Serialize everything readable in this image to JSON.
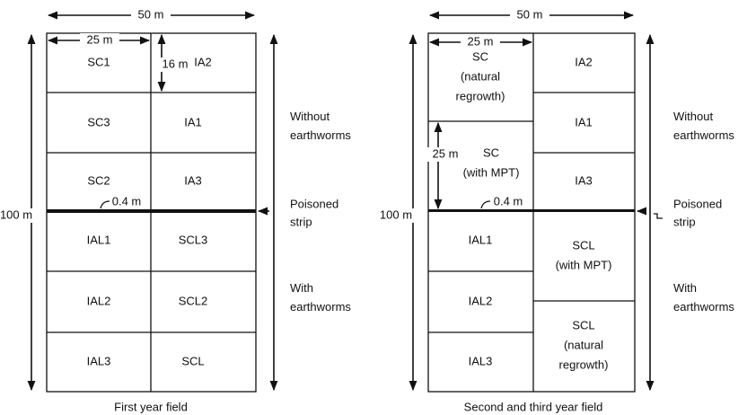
{
  "fields": [
    {
      "caption": "First year field",
      "width_label": "50 m",
      "height_label": "100 m",
      "plot_width_label": "25 m",
      "plot_height_label": "16 m",
      "strip_width_label": "0.4 m",
      "plots": [
        [
          "SC1"
        ],
        [
          "IA2"
        ],
        [
          "SC3"
        ],
        [
          "IA1"
        ],
        [
          "SC2"
        ],
        [
          "IA3"
        ],
        [
          "IAL1"
        ],
        [
          "SCL3"
        ],
        [
          "IAL2"
        ],
        [
          "SCL2"
        ],
        [
          "IAL3"
        ],
        [
          "SCL"
        ]
      ],
      "zones": {
        "without": [
          "Without",
          "earthworms"
        ],
        "strip": [
          "Poisoned",
          "strip"
        ],
        "with": [
          "With",
          "earthworms"
        ]
      }
    },
    {
      "caption": "Second and third year field",
      "width_label": "50 m",
      "height_label": "100 m",
      "plot_width_label": "25 m",
      "plot_height_label": "25 m",
      "strip_width_label": "0.4 m",
      "plots": [
        [
          "SC",
          "(natural",
          "regrowth)"
        ],
        [
          "IA2"
        ],
        [
          "SC",
          "(with MPT)"
        ],
        [
          "IA1"
        ],
        [
          "IA3"
        ],
        [
          "IAL1"
        ],
        [
          "SCL",
          "(with MPT)"
        ],
        [
          "IAL2"
        ],
        [
          "IAL3"
        ],
        [
          "SCL",
          "(natural",
          "regrowth)"
        ]
      ],
      "zones": {
        "without": [
          "Without",
          "earthworms"
        ],
        "strip": [
          "Poisoned",
          "strip"
        ],
        "with": [
          "With",
          "earthworms"
        ]
      }
    }
  ]
}
